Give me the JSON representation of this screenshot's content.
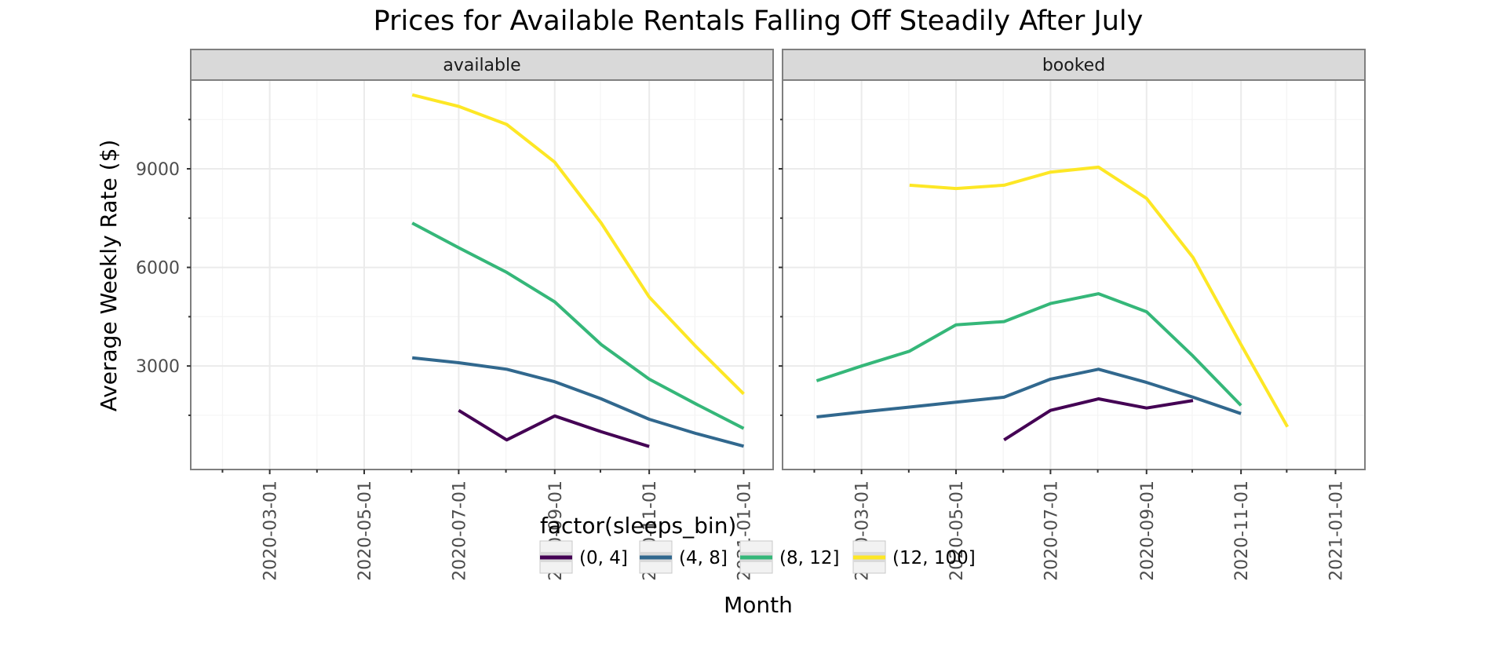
{
  "chart_data": {
    "type": "line",
    "title": "Prices for Available Rentals Falling Off Steadily After July",
    "xlabel": "Month",
    "ylabel": "Average Weekly Rate ($)",
    "x_scale": "date",
    "xlim": [
      "2020-01-10",
      "2021-01-20"
    ],
    "ylim": [
      -150,
      11700
    ],
    "x_ticks": [
      "2020-03-01",
      "2020-05-01",
      "2020-07-01",
      "2020-09-01",
      "2020-11-01",
      "2021-01-01"
    ],
    "y_ticks": [
      3000,
      6000,
      9000
    ],
    "grid": true,
    "legend": {
      "title": "factor(sleeps_bin)",
      "position": "bottom",
      "entries": [
        "(0, 4]",
        "(4, 8]",
        "(8, 12]",
        "(12, 100]"
      ]
    },
    "colors": {
      "(0, 4]": "#440154",
      "(4, 8]": "#31688e",
      "(8, 12]": "#35b779",
      "(12, 100]": "#fde725",
      "strip_bg": "#d9d9d9",
      "grid": "#ebebeb",
      "panel_border": "#7f7f7f"
    },
    "facets": [
      {
        "label": "available",
        "series": [
          {
            "name": "(0, 4]",
            "points": [
              [
                "2020-07-01",
                1650
              ],
              [
                "2020-08-01",
                750
              ],
              [
                "2020-09-01",
                1480
              ],
              [
                "2020-10-01",
                1000
              ],
              [
                "2020-11-01",
                550
              ]
            ]
          },
          {
            "name": "(4, 8]",
            "points": [
              [
                "2020-06-01",
                3250
              ],
              [
                "2020-07-01",
                3100
              ],
              [
                "2020-08-01",
                2900
              ],
              [
                "2020-09-01",
                2520
              ],
              [
                "2020-10-01",
                2000
              ],
              [
                "2020-11-01",
                1380
              ],
              [
                "2020-12-01",
                950
              ],
              [
                "2021-01-01",
                560
              ]
            ]
          },
          {
            "name": "(8, 12]",
            "points": [
              [
                "2020-06-01",
                7350
              ],
              [
                "2020-07-01",
                6600
              ],
              [
                "2020-08-01",
                5850
              ],
              [
                "2020-09-01",
                4950
              ],
              [
                "2020-10-01",
                3650
              ],
              [
                "2020-11-01",
                2600
              ],
              [
                "2020-12-01",
                1850
              ],
              [
                "2021-01-01",
                1100
              ]
            ]
          },
          {
            "name": "(12, 100]",
            "points": [
              [
                "2020-06-01",
                11250
              ],
              [
                "2020-07-01",
                10900
              ],
              [
                "2020-08-01",
                10350
              ],
              [
                "2020-09-01",
                9200
              ],
              [
                "2020-10-01",
                7350
              ],
              [
                "2020-11-01",
                5100
              ],
              [
                "2020-12-01",
                3600
              ],
              [
                "2021-01-01",
                2150
              ]
            ]
          }
        ]
      },
      {
        "label": "booked",
        "series": [
          {
            "name": "(0, 4]",
            "points": [
              [
                "2020-06-01",
                750
              ],
              [
                "2020-07-01",
                1650
              ],
              [
                "2020-08-01",
                2000
              ],
              [
                "2020-09-01",
                1720
              ],
              [
                "2020-10-01",
                1950
              ]
            ]
          },
          {
            "name": "(4, 8]",
            "points": [
              [
                "2020-02-01",
                1450
              ],
              [
                "2020-03-01",
                1600
              ],
              [
                "2020-04-01",
                1750
              ],
              [
                "2020-05-01",
                1900
              ],
              [
                "2020-06-01",
                2050
              ],
              [
                "2020-07-01",
                2600
              ],
              [
                "2020-08-01",
                2900
              ],
              [
                "2020-09-01",
                2500
              ],
              [
                "2020-10-01",
                2050
              ],
              [
                "2020-11-01",
                1550
              ]
            ]
          },
          {
            "name": "(8, 12]",
            "points": [
              [
                "2020-02-01",
                2550
              ],
              [
                "2020-03-01",
                3000
              ],
              [
                "2020-04-01",
                3450
              ],
              [
                "2020-05-01",
                4250
              ],
              [
                "2020-06-01",
                4350
              ],
              [
                "2020-07-01",
                4900
              ],
              [
                "2020-08-01",
                5200
              ],
              [
                "2020-09-01",
                4650
              ],
              [
                "2020-10-01",
                3300
              ],
              [
                "2020-11-01",
                1800
              ]
            ]
          },
          {
            "name": "(12, 100]",
            "points": [
              [
                "2020-04-01",
                8500
              ],
              [
                "2020-05-01",
                8400
              ],
              [
                "2020-06-01",
                8500
              ],
              [
                "2020-07-01",
                8900
              ],
              [
                "2020-08-01",
                9050
              ],
              [
                "2020-09-01",
                8100
              ],
              [
                "2020-10-01",
                6300
              ],
              [
                "2020-11-01",
                3650
              ],
              [
                "2020-12-01",
                1150
              ]
            ]
          }
        ]
      }
    ]
  }
}
